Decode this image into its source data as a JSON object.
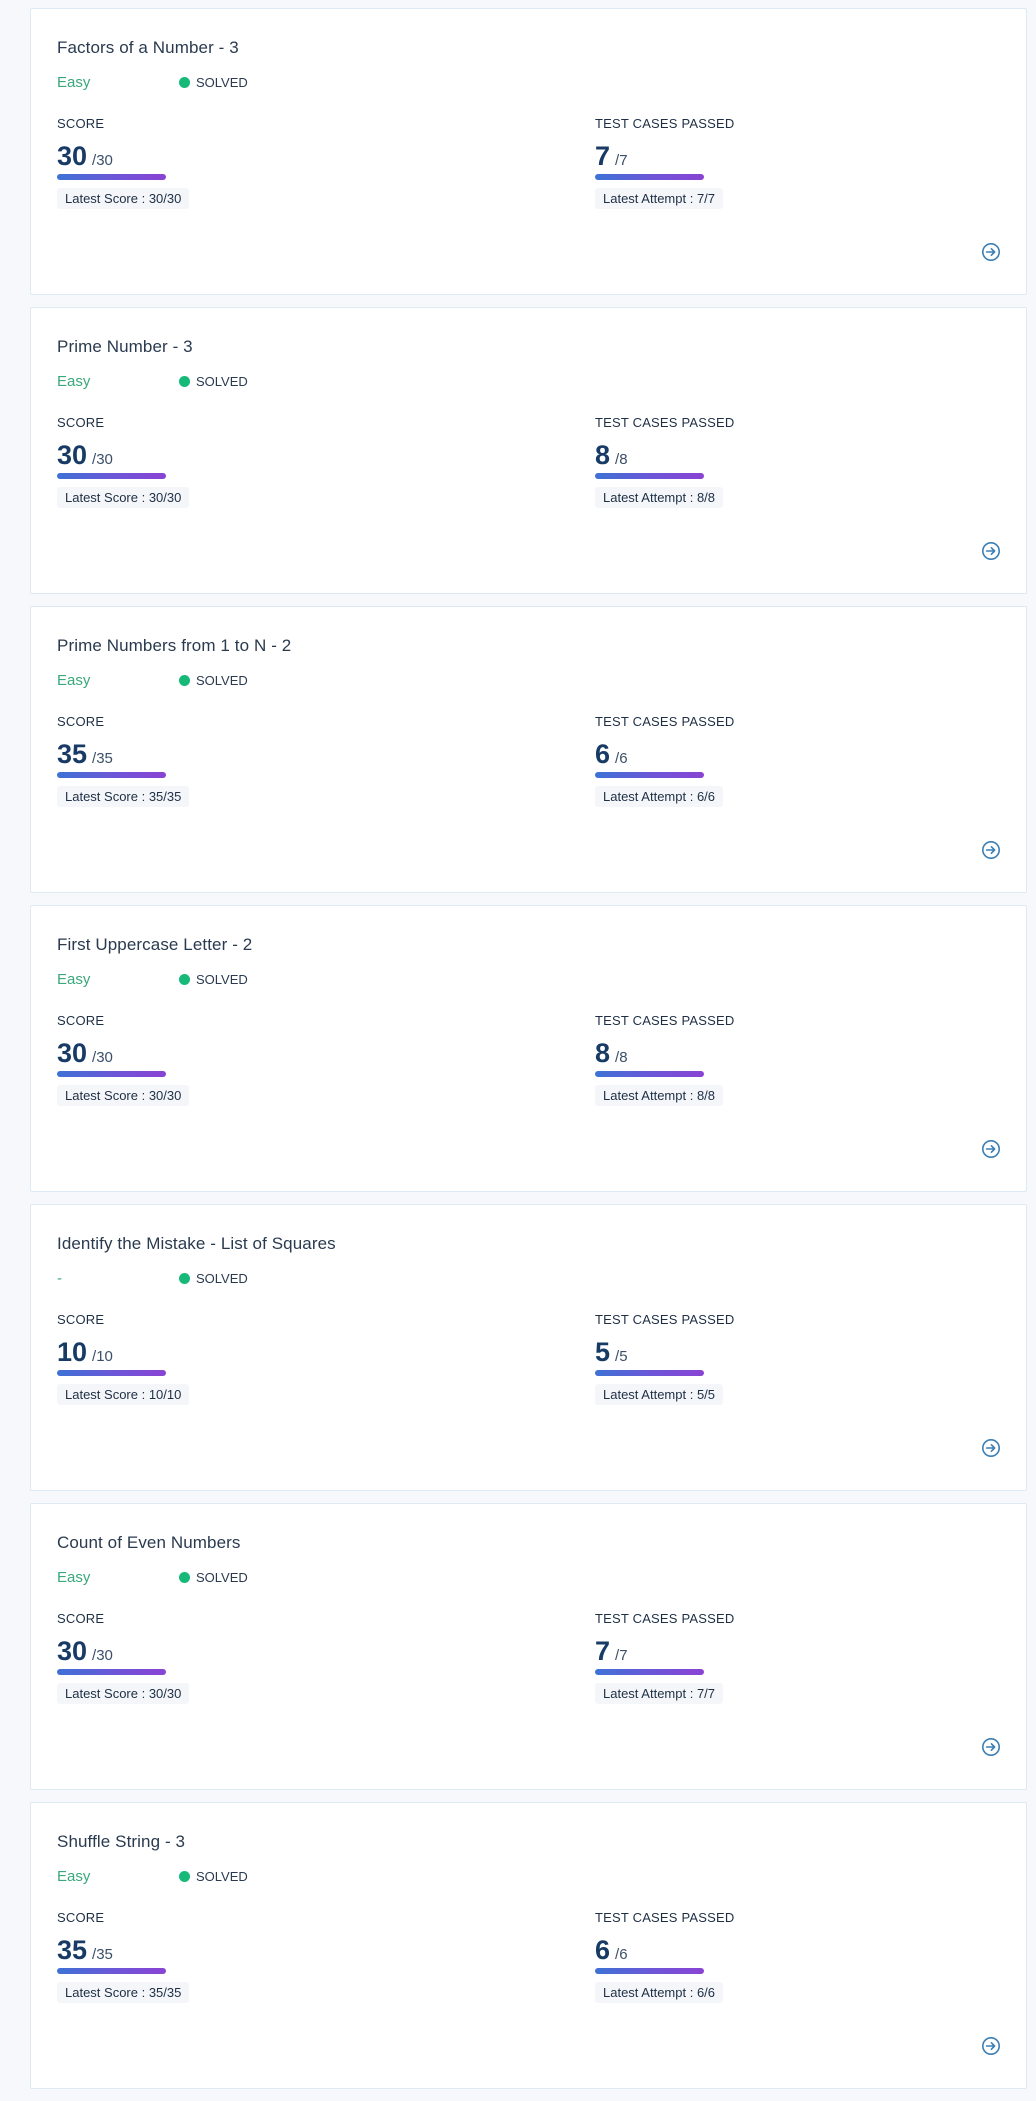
{
  "labels": {
    "score": "SCORE",
    "tests": "TEST CASES PASSED",
    "latest_score_prefix": "Latest Score : ",
    "latest_attempt_prefix": "Latest Attempt : "
  },
  "colors": {
    "easy": "#3aa87a",
    "solved_dot": "#17b978",
    "primary": "#183b66",
    "bar_start": "#3d72d6",
    "bar_end": "#8a43d4",
    "go_icon": "#3c7fb4"
  },
  "problems": [
    {
      "title": "Factors of a Number - 3",
      "difficulty": "Easy",
      "status": "SOLVED",
      "score": "30",
      "score_max": "/30",
      "score_fraction": 1.0,
      "latest_score": "Latest Score : 30/30",
      "tests": "7",
      "tests_max": "/7",
      "tests_fraction": 1.0,
      "latest_attempt": "Latest Attempt : 7/7",
      "go_icon": "arrow-circle-right-icon"
    },
    {
      "title": "Prime Number - 3",
      "difficulty": "Easy",
      "status": "SOLVED",
      "score": "30",
      "score_max": "/30",
      "score_fraction": 1.0,
      "latest_score": "Latest Score : 30/30",
      "tests": "8",
      "tests_max": "/8",
      "tests_fraction": 1.0,
      "latest_attempt": "Latest Attempt : 8/8",
      "go_icon": "arrow-circle-right-icon"
    },
    {
      "title": "Prime Numbers from 1 to N - 2",
      "difficulty": "Easy",
      "status": "SOLVED",
      "score": "35",
      "score_max": "/35",
      "score_fraction": 1.0,
      "latest_score": "Latest Score : 35/35",
      "tests": "6",
      "tests_max": "/6",
      "tests_fraction": 1.0,
      "latest_attempt": "Latest Attempt : 6/6",
      "go_icon": "arrow-circle-right-icon"
    },
    {
      "title": "First Uppercase Letter - 2",
      "difficulty": "Easy",
      "status": "SOLVED",
      "score": "30",
      "score_max": "/30",
      "score_fraction": 1.0,
      "latest_score": "Latest Score : 30/30",
      "tests": "8",
      "tests_max": "/8",
      "tests_fraction": 1.0,
      "latest_attempt": "Latest Attempt : 8/8",
      "go_icon": "arrow-circle-right-icon"
    },
    {
      "title": "Identify the Mistake - List of Squares",
      "difficulty": "-",
      "status": "SOLVED",
      "score": "10",
      "score_max": "/10",
      "score_fraction": 1.0,
      "latest_score": "Latest Score : 10/10",
      "tests": "5",
      "tests_max": "/5",
      "tests_fraction": 1.0,
      "latest_attempt": "Latest Attempt : 5/5",
      "go_icon": "arrow-circle-right-icon"
    },
    {
      "title": "Count of Even Numbers",
      "difficulty": "Easy",
      "status": "SOLVED",
      "score": "30",
      "score_max": "/30",
      "score_fraction": 1.0,
      "latest_score": "Latest Score : 30/30",
      "tests": "7",
      "tests_max": "/7",
      "tests_fraction": 1.0,
      "latest_attempt": "Latest Attempt : 7/7",
      "go_icon": "arrow-circle-right-icon"
    },
    {
      "title": "Shuffle String - 3",
      "difficulty": "Easy",
      "status": "SOLVED",
      "score": "35",
      "score_max": "/35",
      "score_fraction": 1.0,
      "latest_score": "Latest Score : 35/35",
      "tests": "6",
      "tests_max": "/6",
      "tests_fraction": 1.0,
      "latest_attempt": "Latest Attempt : 6/6",
      "go_icon": "arrow-circle-right-icon"
    }
  ]
}
